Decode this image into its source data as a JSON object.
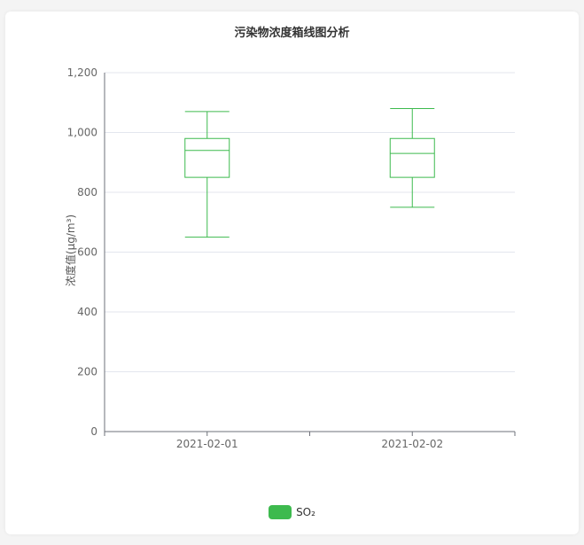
{
  "chart_data": {
    "type": "boxplot",
    "title": "污染物浓度箱线图分析",
    "xlabel": "",
    "ylabel": "浓度值(μg/m³)",
    "categories": [
      "2021-02-01",
      "2021-02-02"
    ],
    "ylim": [
      0,
      1200
    ],
    "yticks": [
      0,
      200,
      400,
      600,
      800,
      1000,
      1200
    ],
    "ytick_labels": [
      "0",
      "200",
      "400",
      "600",
      "800",
      "1,000",
      "1,200"
    ],
    "grid": true,
    "legend_position": "bottom",
    "series": [
      {
        "name": "SO₂",
        "color": "#3dba4e",
        "boxes": [
          {
            "min": 650,
            "q1": 850,
            "median": 940,
            "q3": 980,
            "max": 1070
          },
          {
            "min": 750,
            "q1": 850,
            "median": 930,
            "q3": 980,
            "max": 1080
          }
        ]
      }
    ]
  }
}
